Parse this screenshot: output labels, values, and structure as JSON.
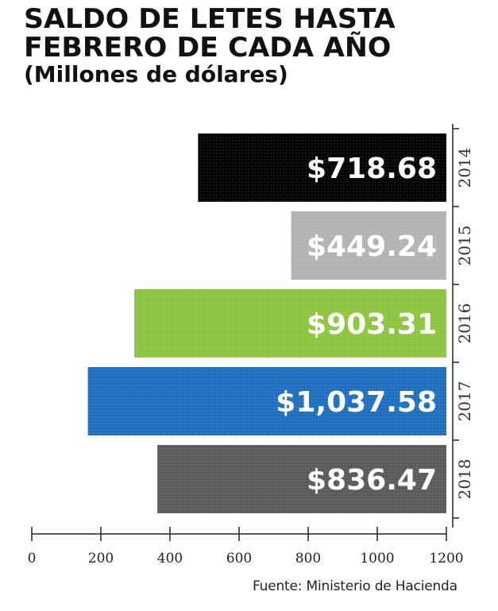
{
  "header": {
    "title_line1": "SALDO DE LETES HASTA",
    "title_line2": "FEBRERO DE CADA AÑO",
    "subtitle": "(Millones de dólares)"
  },
  "source": "Fuente: Ministerio de Hacienda",
  "chart_data": {
    "type": "bar",
    "orientation": "horizontal",
    "title": "SALDO DE LETES HASTA FEBRERO DE CADA AÑO",
    "subtitle": "(Millones de dólares)",
    "categories": [
      "2014",
      "2015",
      "2016",
      "2017",
      "2018"
    ],
    "values": [
      718.68,
      449.24,
      903.31,
      1037.58,
      836.47
    ],
    "value_labels": [
      "$718.68",
      "$449.24",
      "$903.31",
      "$1,037.58",
      "$836.47"
    ],
    "colors": [
      "#000000",
      "#b3b3b3",
      "#8cc63f",
      "#1f6fc0",
      "#5a5a5a"
    ],
    "label_colors": [
      "#ffffff",
      "#ffffff",
      "#ffffff",
      "#ffffff",
      "#ffffff"
    ],
    "bar_direction": "right-to-left",
    "x_ticks": [
      0,
      200,
      400,
      600,
      800,
      1000,
      1200
    ],
    "x_tick_labels": [
      "0",
      "200",
      "400",
      "600",
      "800",
      "1000",
      "1200"
    ],
    "xlim": [
      0,
      1200
    ],
    "grid": false,
    "legend": "none"
  }
}
